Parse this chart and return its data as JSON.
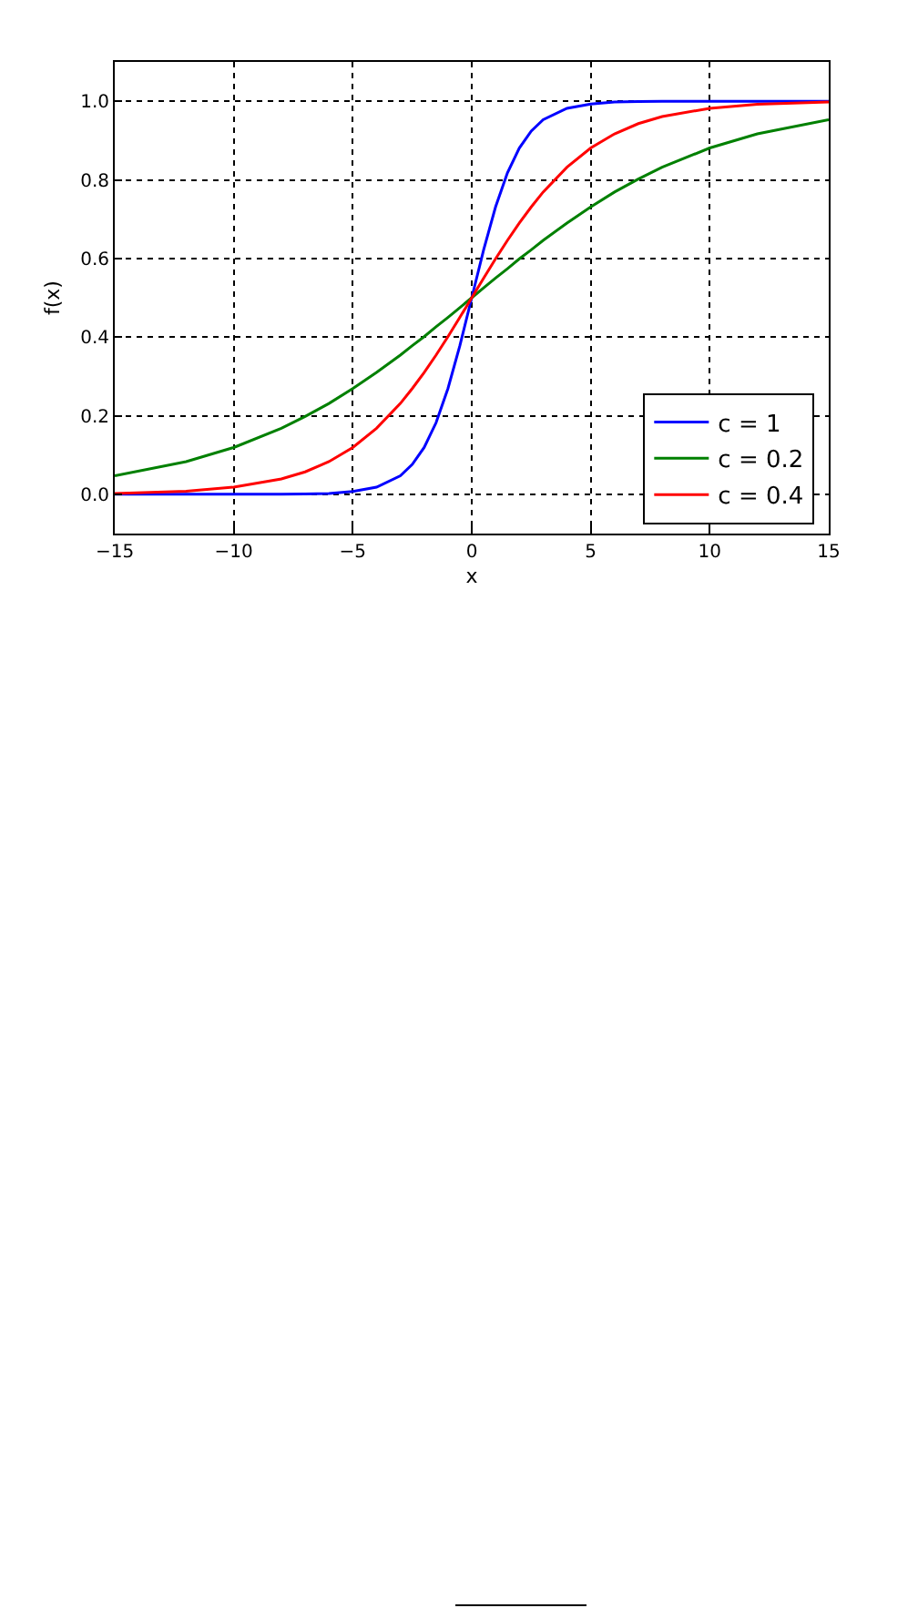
{
  "chart_data": {
    "type": "line",
    "xlabel": "x",
    "ylabel": "f(x)",
    "x": [
      -15,
      -12,
      -10,
      -8,
      -7,
      -6,
      -5,
      -4,
      -3,
      -2.5,
      -2,
      -1.5,
      -1,
      -0.5,
      0,
      0.5,
      1,
      1.5,
      2,
      2.5,
      3,
      4,
      5,
      6,
      7,
      8,
      10,
      12,
      15
    ],
    "series": [
      {
        "name": "c = 1",
        "color": "#0000ff",
        "values": [
          0.0,
          0.0,
          0.0,
          0.0,
          0.001,
          0.002,
          0.007,
          0.018,
          0.047,
          0.076,
          0.119,
          0.182,
          0.269,
          0.378,
          0.5,
          0.622,
          0.731,
          0.818,
          0.881,
          0.924,
          0.953,
          0.982,
          0.993,
          0.998,
          0.999,
          1.0,
          1.0,
          1.0,
          1.0
        ]
      },
      {
        "name": "c = 0.2",
        "color": "#008000",
        "values": [
          0.047,
          0.083,
          0.119,
          0.168,
          0.198,
          0.231,
          0.269,
          0.31,
          0.354,
          0.378,
          0.401,
          0.426,
          0.45,
          0.475,
          0.5,
          0.525,
          0.55,
          0.574,
          0.599,
          0.622,
          0.646,
          0.69,
          0.731,
          0.769,
          0.802,
          0.832,
          0.881,
          0.917,
          0.953
        ]
      },
      {
        "name": "c = 0.4",
        "color": "#ff0000",
        "values": [
          0.002,
          0.008,
          0.018,
          0.039,
          0.057,
          0.083,
          0.119,
          0.168,
          0.231,
          0.269,
          0.31,
          0.354,
          0.401,
          0.45,
          0.5,
          0.55,
          0.599,
          0.646,
          0.69,
          0.731,
          0.769,
          0.832,
          0.881,
          0.917,
          0.943,
          0.961,
          0.982,
          0.992,
          0.998
        ]
      }
    ],
    "xlim": [
      -15,
      15
    ],
    "xticks": [
      {
        "value": -15,
        "label": "−15"
      },
      {
        "value": -10,
        "label": "−10"
      },
      {
        "value": -5,
        "label": "−5"
      },
      0,
      5,
      10,
      15
    ],
    "ylim": [
      -0.1,
      1.1
    ],
    "yticks": [
      {
        "value": 0,
        "label": "0.0"
      },
      {
        "value": 0.2,
        "label": "0.2"
      },
      {
        "value": 0.4,
        "label": "0.4"
      },
      {
        "value": 0.6,
        "label": "0.6"
      },
      {
        "value": 0.8,
        "label": "0.8"
      },
      {
        "value": 1,
        "label": "1.0"
      }
    ],
    "grid": true,
    "legend": "bottom right",
    "marker": "none",
    "line_style": "solid"
  }
}
